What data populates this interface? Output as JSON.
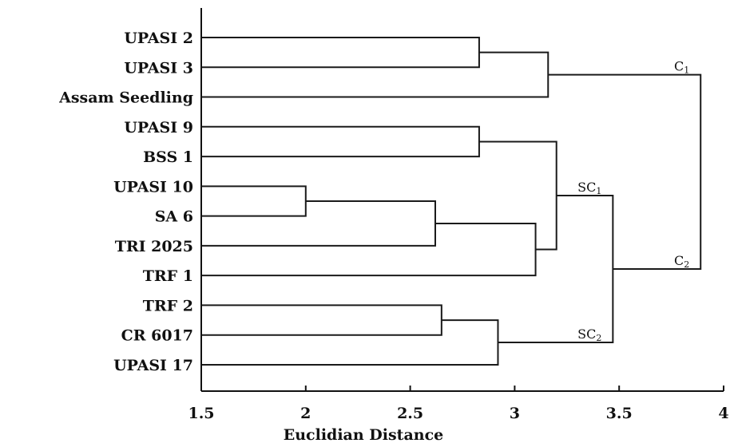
{
  "chart_data": {
    "type": "dendrogram",
    "orientation": "horizontal",
    "xlabel": "Euclidian Distance",
    "xlim": [
      1.5,
      4
    ],
    "xticks": [
      1.5,
      2,
      2.5,
      3,
      3.5,
      4
    ],
    "xtick_labels": [
      "1.5",
      "2",
      "2.5",
      "3",
      "3.5",
      "4"
    ],
    "leaves": [
      "UPASI 2",
      "UPASI 3",
      "Assam Seedling",
      "UPASI 9",
      "BSS 1",
      "UPASI 10",
      "SA 6",
      "TRI 2025",
      "TRF 1",
      "TRF 2",
      "CR 6017",
      "UPASI 17"
    ],
    "merges": [
      {
        "a": "UPASI 10",
        "b": "SA 6",
        "distance": 2.0
      },
      {
        "a": "m0",
        "b": "TRI 2025",
        "distance": 2.62
      },
      {
        "a": "TRF 2",
        "b": "CR 6017",
        "distance": 2.65
      },
      {
        "a": "UPASI 2",
        "b": "UPASI 3",
        "distance": 2.83
      },
      {
        "a": "UPASI 9",
        "b": "BSS 1",
        "distance": 2.83
      },
      {
        "a": "m2",
        "b": "UPASI 17",
        "distance": 2.92
      },
      {
        "a": "m1",
        "b": "TRF 1",
        "distance": 3.1
      },
      {
        "a": "m3",
        "b": "Assam Seedling",
        "distance": 3.16
      },
      {
        "a": "m4",
        "b": "m6",
        "distance": 3.2
      },
      {
        "a": "m8",
        "b": "m5",
        "distance": 3.47
      },
      {
        "a": "m7",
        "b": "m9",
        "distance": 3.89
      }
    ],
    "cluster_labels": [
      {
        "main": "C",
        "sub": "1",
        "merge": 10,
        "position": "above-top"
      },
      {
        "main": "SC",
        "sub": "1",
        "merge": 9,
        "position": "above-top"
      },
      {
        "main": "C",
        "sub": "2",
        "merge": 10,
        "position": "above-bottom"
      },
      {
        "main": "SC",
        "sub": "2",
        "merge": 9,
        "position": "above-bottom"
      }
    ]
  }
}
